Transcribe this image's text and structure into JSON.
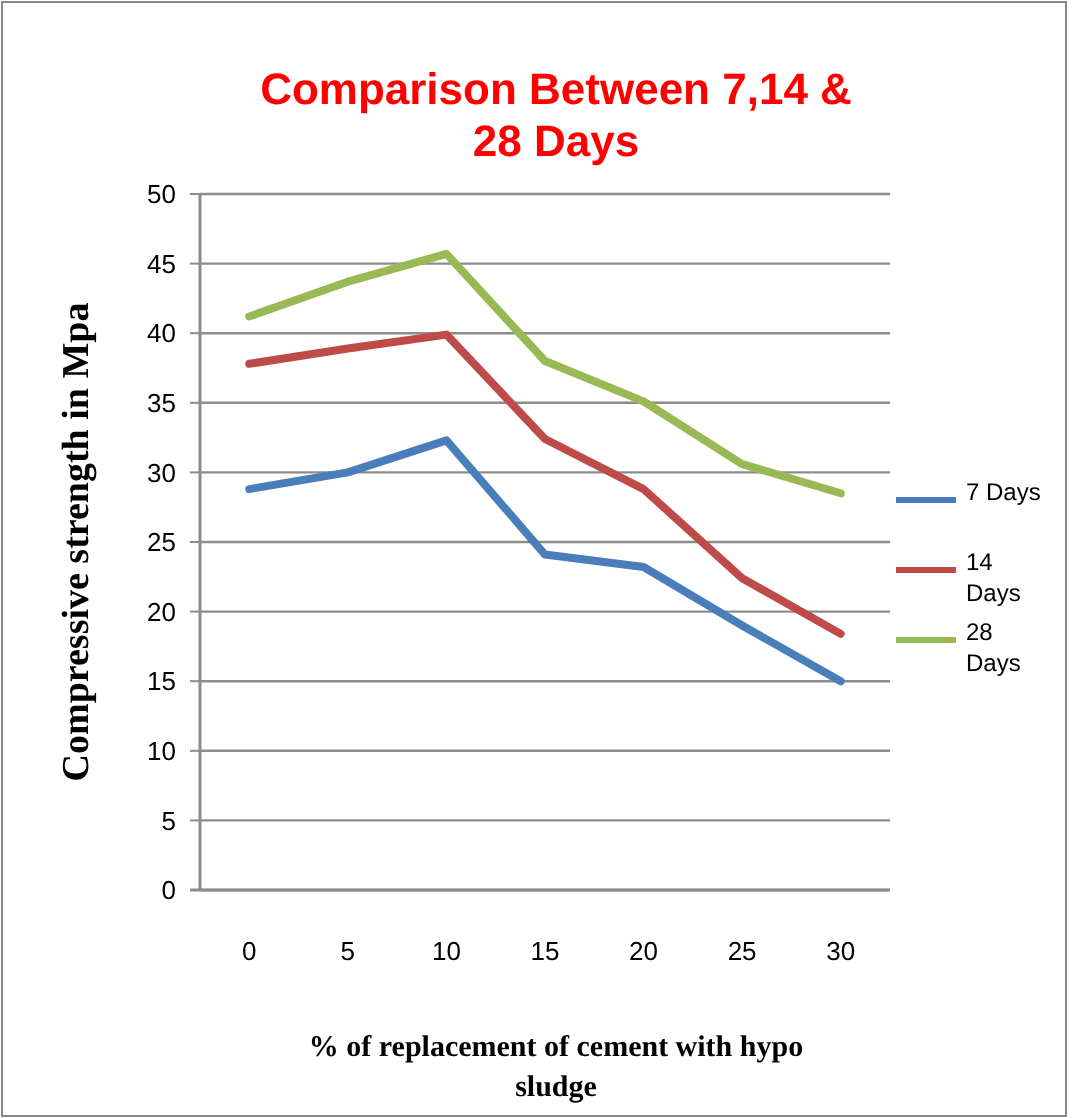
{
  "chart_data": {
    "type": "line",
    "title": "Comparison Between 7,14 & 28 Days",
    "xlabel": "% of replacement of cement with hypo sludge",
    "ylabel": "Compressive strength in Mpa",
    "categories": [
      "0",
      "5",
      "10",
      "15",
      "20",
      "25",
      "30"
    ],
    "series": [
      {
        "name": "7 Days",
        "color": "#4a7ebb",
        "values": [
          28.8,
          30.0,
          32.3,
          24.1,
          23.2,
          19.0,
          15.0
        ]
      },
      {
        "name": "14 Days",
        "color": "#be4b48",
        "values": [
          37.8,
          38.9,
          39.9,
          32.4,
          28.8,
          22.4,
          18.4
        ]
      },
      {
        "name": "28 Days",
        "color": "#98b954",
        "values": [
          41.2,
          43.7,
          45.7,
          38.0,
          35.1,
          30.6,
          28.5
        ]
      }
    ],
    "ylim": [
      0,
      50
    ],
    "yticks": [
      0,
      5,
      10,
      15,
      20,
      25,
      30,
      35,
      40,
      45,
      50
    ],
    "grid": "y",
    "legend": "right",
    "marker": "none",
    "line_style": "solid"
  }
}
